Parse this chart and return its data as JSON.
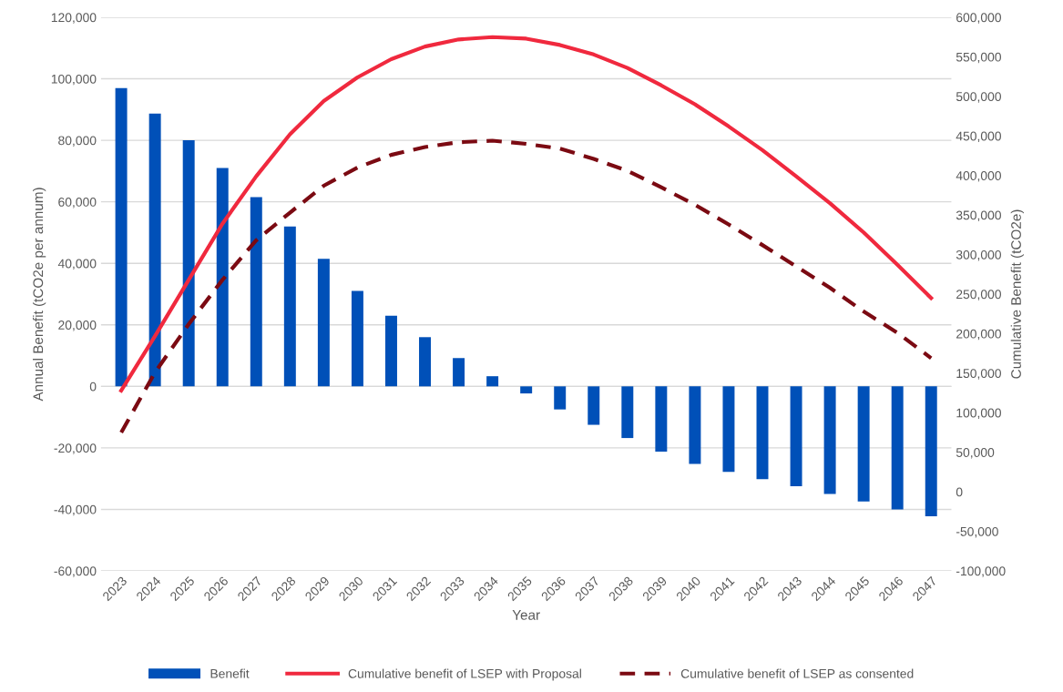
{
  "chart_data": {
    "type": "bar",
    "xlabel": "Year",
    "ylabel": "Annual Benefit (tCO2e per annum)",
    "y2label": "Cumulative Benefit (tCO2e)",
    "categories": [
      "2023",
      "2024",
      "2025",
      "2026",
      "2027",
      "2028",
      "2029",
      "2030",
      "2031",
      "2032",
      "2033",
      "2034",
      "2035",
      "2036",
      "2037",
      "2038",
      "2039",
      "2040",
      "2041",
      "2042",
      "2043",
      "2044",
      "2045",
      "2046",
      "2047"
    ],
    "series": [
      {
        "name": "Benefit",
        "color": "#0050b8",
        "values": [
          97000,
          88700,
          80000,
          71000,
          61500,
          52000,
          41500,
          31000,
          23000,
          16000,
          9200,
          3300,
          -2300,
          -7500,
          -12500,
          -16800,
          -21200,
          -25200,
          -27800,
          -30200,
          -32500,
          -35000,
          -37400,
          -40000,
          -42200
        ]
      },
      {
        "name": "Cumulative benefit of LSEP with Proposal",
        "type": "line",
        "axis": "y2",
        "line_style": "solid",
        "color": "#f0293e",
        "values": [
          128000,
          197000,
          268000,
          339000,
          399000,
          452000,
          494000,
          524000,
          547000,
          563000,
          572000,
          575000,
          573000,
          565000,
          553000,
          536000,
          514000,
          490000,
          462000,
          432000,
          399000,
          365000,
          328000,
          287000,
          245000
        ]
      },
      {
        "name": "Cumulative benefit of LSEP as consented",
        "type": "line",
        "axis": "y2",
        "line_style": "dashed",
        "color": "#7b0a12",
        "values": [
          75000,
          151000,
          212000,
          268000,
          318000,
          353000,
          387000,
          410000,
          426000,
          436000,
          442000,
          444000,
          440000,
          434000,
          421000,
          406000,
          385000,
          363000,
          338000,
          312000,
          285000,
          258000,
          228000,
          201000,
          169000
        ]
      }
    ],
    "ylim": [
      -60000,
      120000
    ],
    "yticks": [
      {
        "value": -60000,
        "label": "-60,000"
      },
      {
        "value": -40000,
        "label": "-40,000"
      },
      {
        "value": -20000,
        "label": "-20,000"
      },
      {
        "value": 0,
        "label": "0"
      },
      {
        "value": 20000,
        "label": "20,000"
      },
      {
        "value": 40000,
        "label": "40,000"
      },
      {
        "value": 60000,
        "label": "60,000"
      },
      {
        "value": 80000,
        "label": "80,000"
      },
      {
        "value": 100000,
        "label": "100,000"
      },
      {
        "value": 120000,
        "label": "120,000"
      }
    ],
    "y2lim": [
      -100000,
      600000
    ],
    "y2ticks": [
      {
        "value": -100000,
        "label": "-100,000"
      },
      {
        "value": -50000,
        "label": "-50,000"
      },
      {
        "value": 0,
        "label": "0"
      },
      {
        "value": 50000,
        "label": "50,000"
      },
      {
        "value": 100000,
        "label": "100,000"
      },
      {
        "value": 150000,
        "label": "150,000"
      },
      {
        "value": 200000,
        "label": "200,000"
      },
      {
        "value": 250000,
        "label": "250,000"
      },
      {
        "value": 300000,
        "label": "300,000"
      },
      {
        "value": 350000,
        "label": "350,000"
      },
      {
        "value": 400000,
        "label": "400,000"
      },
      {
        "value": 450000,
        "label": "450,000"
      },
      {
        "value": 500000,
        "label": "500,000"
      },
      {
        "value": 550000,
        "label": "550,000"
      },
      {
        "value": 600000,
        "label": "600,000"
      }
    ],
    "grid": "y",
    "legend": "bottom"
  }
}
